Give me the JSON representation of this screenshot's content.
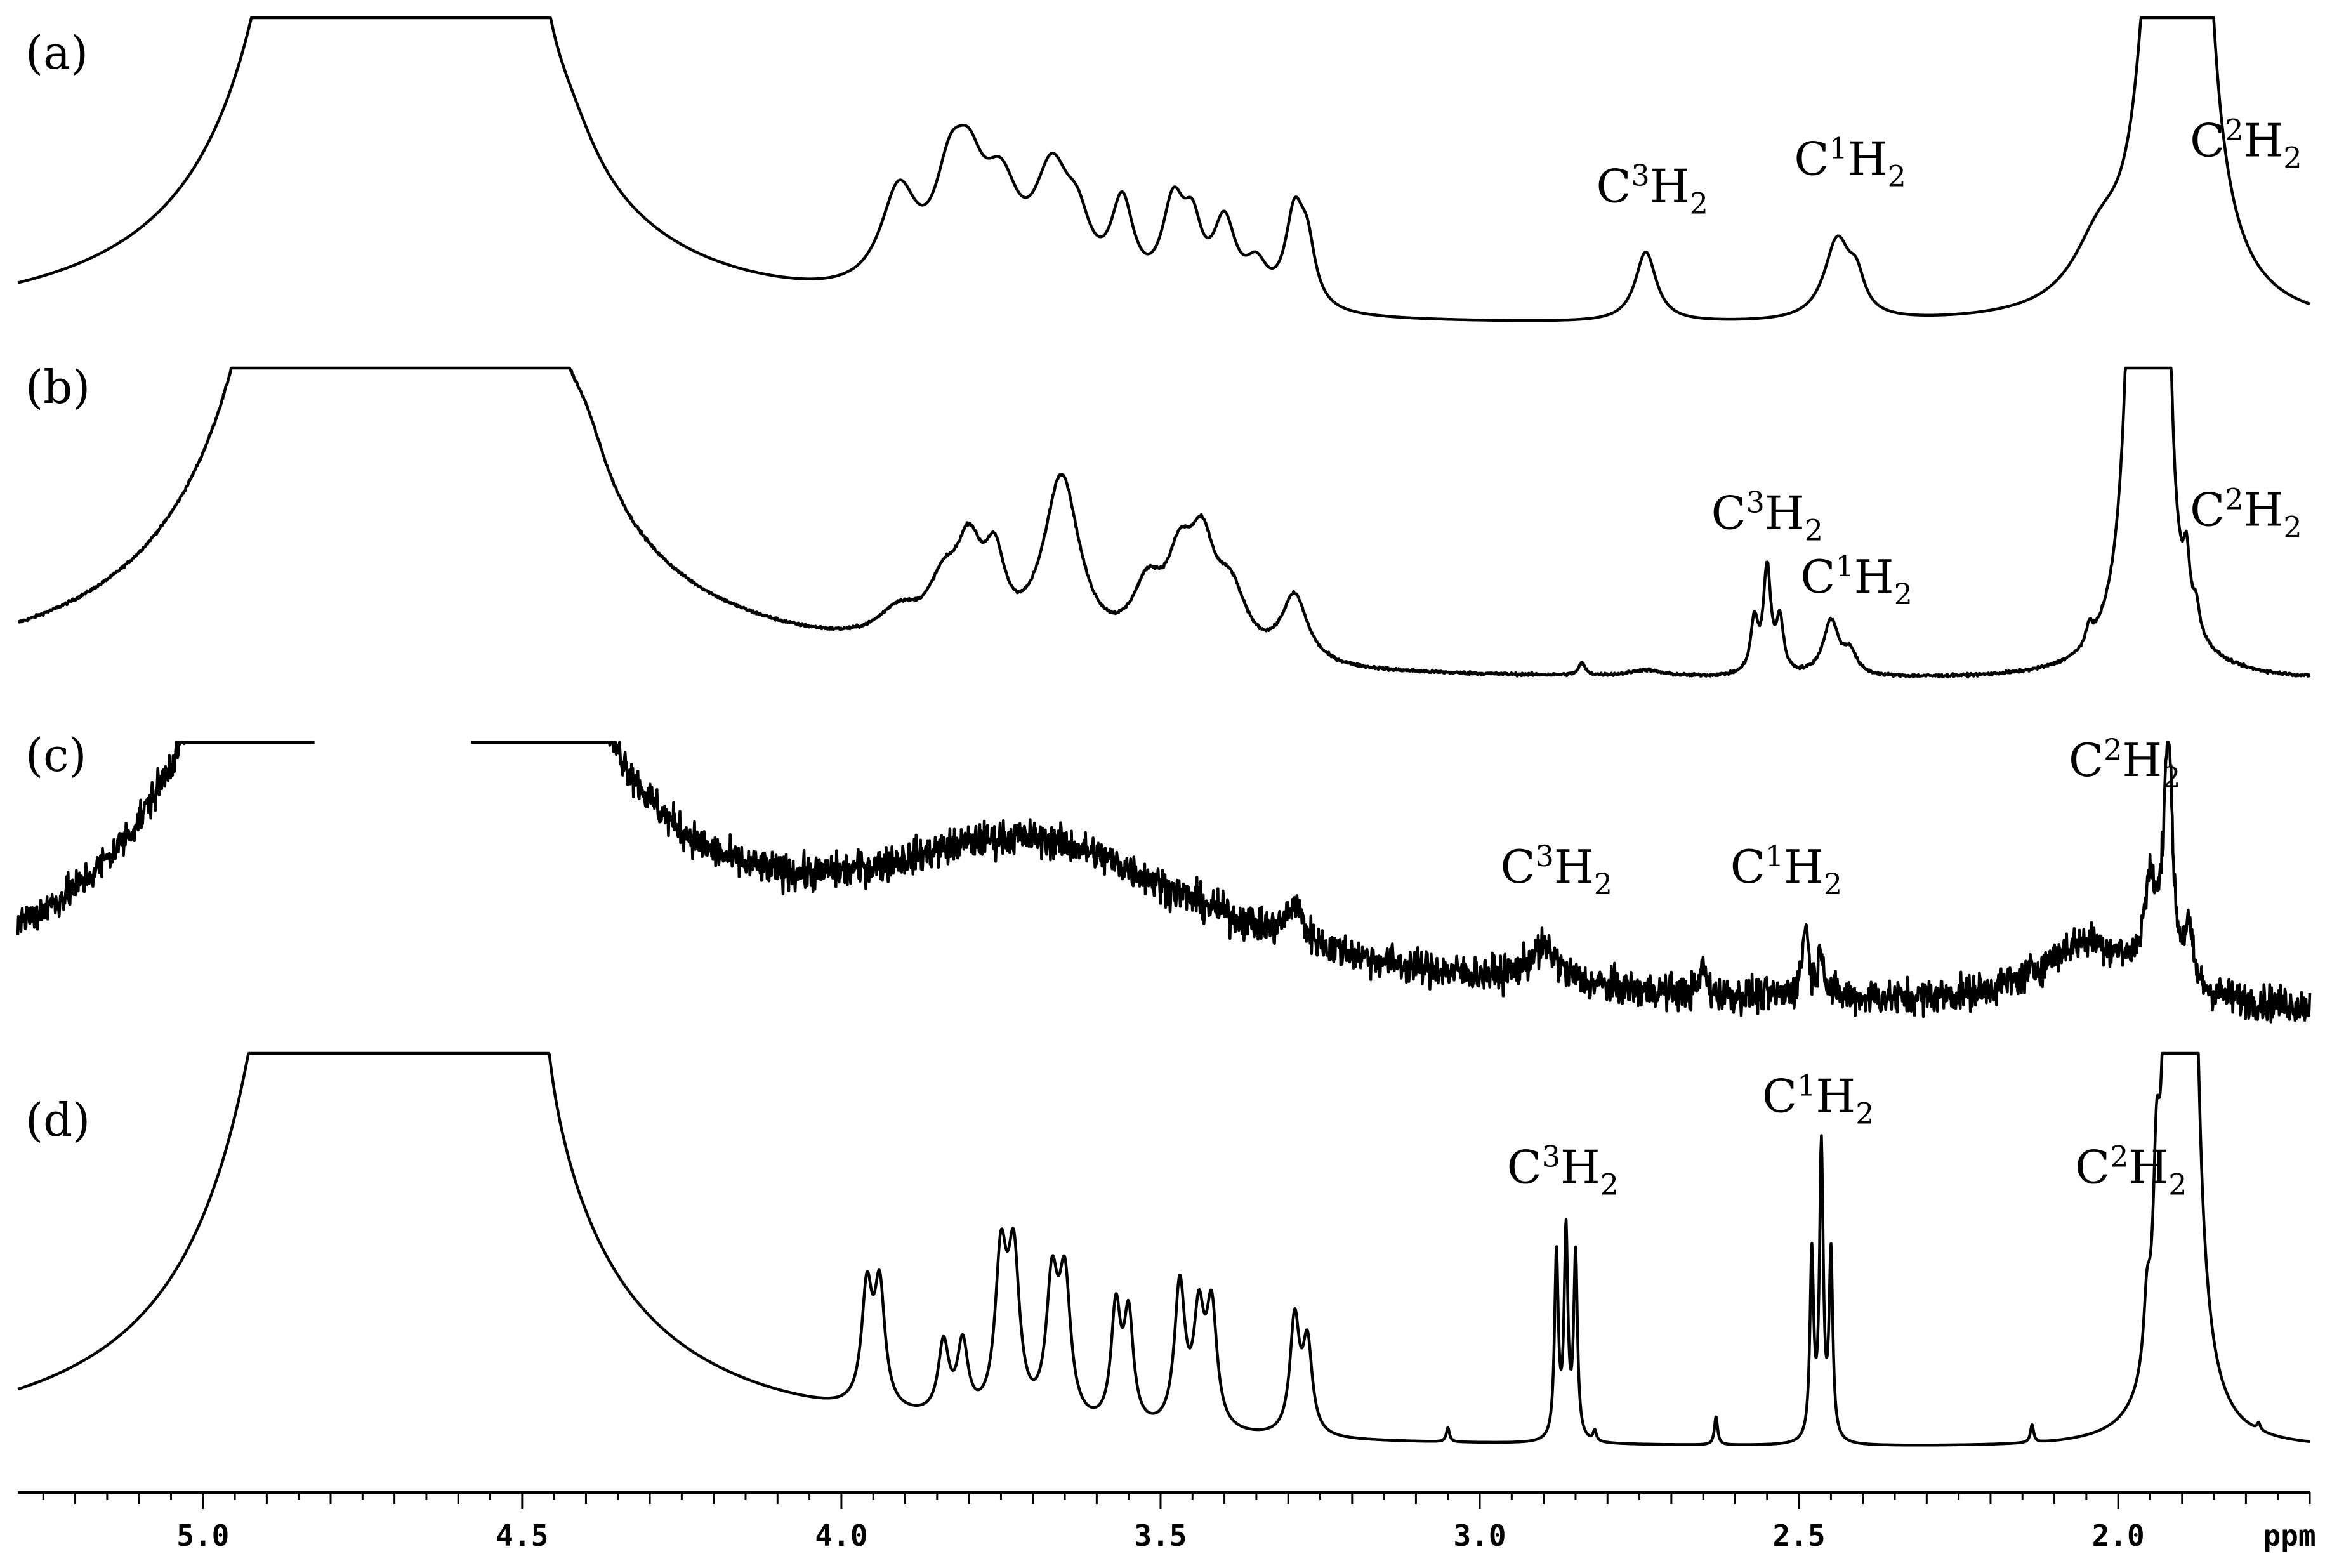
{
  "chart_data": {
    "type": "line",
    "title": "",
    "xlabel": "ppm",
    "ylabel": "",
    "xlim": [
      5.29,
      1.7
    ],
    "x_reversed": true,
    "grid": false,
    "x_ticks": [
      "5.0",
      "4.5",
      "4.0",
      "3.5",
      "3.0",
      "2.5",
      "2.0"
    ],
    "x_unit_label": "ppm",
    "panels": [
      {
        "label": "(a)",
        "noise": 0,
        "offset": 0.012,
        "solvent": {
          "pos": 4.7,
          "width": 0.042,
          "height": 30
        },
        "peaks": [
          {
            "pos": 4.77,
            "width": 0.03,
            "height": 0.04
          },
          {
            "pos": 4.62,
            "width": 0.03,
            "height": 0.04
          },
          {
            "pos": 4.49,
            "width": 0.025,
            "height": 0.33
          },
          {
            "pos": 4.42,
            "width": 0.045,
            "height": 0.07
          },
          {
            "pos": 3.91,
            "width": 0.035,
            "height": 0.32
          },
          {
            "pos": 3.83,
            "width": 0.03,
            "height": 0.3
          },
          {
            "pos": 3.8,
            "width": 0.03,
            "height": 0.28
          },
          {
            "pos": 3.75,
            "width": 0.035,
            "height": 0.3
          },
          {
            "pos": 3.67,
            "width": 0.035,
            "height": 0.38
          },
          {
            "pos": 3.63,
            "width": 0.025,
            "height": 0.17
          },
          {
            "pos": 3.56,
            "width": 0.022,
            "height": 0.3
          },
          {
            "pos": 3.48,
            "width": 0.022,
            "height": 0.3
          },
          {
            "pos": 3.45,
            "width": 0.018,
            "height": 0.2
          },
          {
            "pos": 3.4,
            "width": 0.022,
            "height": 0.26
          },
          {
            "pos": 3.35,
            "width": 0.022,
            "height": 0.12
          },
          {
            "pos": 3.29,
            "width": 0.018,
            "height": 0.3
          },
          {
            "pos": 3.27,
            "width": 0.015,
            "height": 0.17
          },
          {
            "pos": 2.74,
            "width": 0.02,
            "height": 0.23
          },
          {
            "pos": 2.44,
            "width": 0.025,
            "height": 0.26
          },
          {
            "pos": 2.41,
            "width": 0.015,
            "height": 0.1
          },
          {
            "pos": 2.03,
            "width": 0.05,
            "height": 0.18
          },
          {
            "pos": 1.965,
            "width": 0.02,
            "height": 0.07
          },
          {
            "pos": 1.935,
            "width": 0.012,
            "height": 0.4
          },
          {
            "pos": 1.905,
            "width": 0.01,
            "height": 30
          },
          {
            "pos": 1.86,
            "width": 0.01,
            "height": 0.03
          }
        ],
        "annotations": [
          {
            "base": "C",
            "sup": "3",
            "mid": "H",
            "sub": "2",
            "x": 2.73,
            "y": 0.43
          },
          {
            "base": "C",
            "sup": "1",
            "mid": "H",
            "sub": "2",
            "x": 2.42,
            "y": 0.52
          },
          {
            "base": "C",
            "sup": "2",
            "mid": "H",
            "sub": "2",
            "x": 1.8,
            "y": 0.58
          }
        ]
      },
      {
        "label": "(b)",
        "noise": 0.005,
        "offset": 0.012,
        "solvent": {
          "pos": 4.7,
          "width": 0.048,
          "height": 30
        },
        "peaks": [
          {
            "pos": 4.755,
            "width": 0.03,
            "height": 0.35
          },
          {
            "pos": 4.66,
            "width": 0.03,
            "height": 0.25
          },
          {
            "pos": 4.49,
            "width": 0.03,
            "height": 0.2
          },
          {
            "pos": 4.4,
            "width": 0.04,
            "height": 0.14
          },
          {
            "pos": 3.91,
            "width": 0.04,
            "height": 0.1
          },
          {
            "pos": 3.84,
            "width": 0.03,
            "height": 0.17
          },
          {
            "pos": 3.8,
            "width": 0.025,
            "height": 0.28
          },
          {
            "pos": 3.76,
            "width": 0.02,
            "height": 0.24
          },
          {
            "pos": 3.655,
            "width": 0.035,
            "height": 0.58
          },
          {
            "pos": 3.52,
            "width": 0.03,
            "height": 0.2
          },
          {
            "pos": 3.47,
            "width": 0.025,
            "height": 0.25
          },
          {
            "pos": 3.435,
            "width": 0.025,
            "height": 0.31
          },
          {
            "pos": 3.39,
            "width": 0.03,
            "height": 0.2
          },
          {
            "pos": 3.29,
            "width": 0.025,
            "height": 0.22
          },
          {
            "pos": 2.84,
            "width": 0.006,
            "height": 0.04
          },
          {
            "pos": 2.74,
            "width": 0.03,
            "height": 0.02
          },
          {
            "pos": 2.57,
            "width": 0.007,
            "height": 0.17
          },
          {
            "pos": 2.55,
            "width": 0.007,
            "height": 0.34
          },
          {
            "pos": 2.53,
            "width": 0.007,
            "height": 0.17
          },
          {
            "pos": 2.45,
            "width": 0.015,
            "height": 0.18
          },
          {
            "pos": 2.42,
            "width": 0.012,
            "height": 0.07
          },
          {
            "pos": 2.045,
            "width": 0.006,
            "height": 0.06
          },
          {
            "pos": 1.957,
            "width": 0.006,
            "height": 30
          },
          {
            "pos": 1.922,
            "width": 0.007,
            "height": 0.56
          },
          {
            "pos": 1.893,
            "width": 0.006,
            "height": 0.18
          },
          {
            "pos": 1.878,
            "width": 0.006,
            "height": 0.08
          }
        ],
        "annotations": [
          {
            "base": "C",
            "sup": "3",
            "mid": "H",
            "sub": "2",
            "x": 2.55,
            "y": 0.52
          },
          {
            "base": "C",
            "sup": "1",
            "mid": "H",
            "sub": "2",
            "x": 2.41,
            "y": 0.31
          },
          {
            "base": "C",
            "sup": "2",
            "mid": "H",
            "sub": "2",
            "x": 1.8,
            "y": 0.53
          }
        ]
      },
      {
        "label": "(c)",
        "noise": 0.05,
        "offset": 0.1,
        "solvent": {
          "pos": 4.7,
          "width": 0.05,
          "height": 30
        },
        "cutoff": [
          4.825,
          4.58
        ],
        "peaks": [
          {
            "pos": 4.75,
            "width": 0.18,
            "height": 0.35
          },
          {
            "pos": 3.7,
            "width": 0.35,
            "height": 0.42
          },
          {
            "pos": 3.29,
            "width": 0.015,
            "height": 0.1
          },
          {
            "pos": 2.9,
            "width": 0.03,
            "height": 0.1
          },
          {
            "pos": 2.65,
            "width": 0.005,
            "height": 0.08
          },
          {
            "pos": 2.49,
            "width": 0.006,
            "height": 0.2
          },
          {
            "pos": 2.465,
            "width": 0.006,
            "height": 0.13
          },
          {
            "pos": 2.05,
            "width": 0.09,
            "height": 0.18
          },
          {
            "pos": 1.95,
            "width": 0.012,
            "height": 0.25
          },
          {
            "pos": 1.922,
            "width": 0.008,
            "height": 0.7
          },
          {
            "pos": 1.89,
            "width": 0.008,
            "height": 0.15
          }
        ],
        "annotations": [
          {
            "base": "C",
            "sup": "3",
            "mid": "H",
            "sub": "2",
            "x": 2.88,
            "y": 0.48
          },
          {
            "base": "C",
            "sup": "1",
            "mid": "H",
            "sub": "2",
            "x": 2.52,
            "y": 0.48
          },
          {
            "base": "C",
            "sup": "2",
            "mid": "H",
            "sub": "2",
            "x": 1.99,
            "y": 0.78
          }
        ]
      },
      {
        "label": "(d)",
        "noise": 0,
        "offset": 0.006,
        "solvent": {
          "pos": 4.7,
          "width": 0.045,
          "height": 30
        },
        "peaks": [
          {
            "pos": 4.495,
            "width": 0.012,
            "height": 0.32
          },
          {
            "pos": 4.48,
            "width": 0.012,
            "height": 0.4
          },
          {
            "pos": 3.96,
            "width": 0.01,
            "height": 0.32
          },
          {
            "pos": 3.94,
            "width": 0.01,
            "height": 0.33
          },
          {
            "pos": 3.84,
            "width": 0.01,
            "height": 0.2
          },
          {
            "pos": 3.81,
            "width": 0.01,
            "height": 0.2
          },
          {
            "pos": 3.75,
            "width": 0.011,
            "height": 0.43
          },
          {
            "pos": 3.73,
            "width": 0.011,
            "height": 0.43
          },
          {
            "pos": 3.67,
            "width": 0.011,
            "height": 0.37
          },
          {
            "pos": 3.65,
            "width": 0.011,
            "height": 0.38
          },
          {
            "pos": 3.57,
            "width": 0.009,
            "height": 0.32
          },
          {
            "pos": 3.55,
            "width": 0.009,
            "height": 0.3
          },
          {
            "pos": 3.47,
            "width": 0.01,
            "height": 0.4
          },
          {
            "pos": 3.44,
            "width": 0.01,
            "height": 0.3
          },
          {
            "pos": 3.42,
            "width": 0.01,
            "height": 0.33
          },
          {
            "pos": 3.29,
            "width": 0.009,
            "height": 0.32
          },
          {
            "pos": 3.27,
            "width": 0.009,
            "height": 0.25
          },
          {
            "pos": 3.05,
            "width": 0.003,
            "height": 0.04
          },
          {
            "pos": 2.88,
            "width": 0.0035,
            "height": 0.52
          },
          {
            "pos": 2.865,
            "width": 0.0035,
            "height": 0.58
          },
          {
            "pos": 2.85,
            "width": 0.0035,
            "height": 0.52
          },
          {
            "pos": 2.82,
            "width": 0.003,
            "height": 0.03
          },
          {
            "pos": 2.63,
            "width": 0.003,
            "height": 0.08
          },
          {
            "pos": 2.48,
            "width": 0.0035,
            "height": 0.52
          },
          {
            "pos": 2.465,
            "width": 0.0035,
            "height": 0.82
          },
          {
            "pos": 2.45,
            "width": 0.0035,
            "height": 0.52
          },
          {
            "pos": 2.135,
            "width": 0.003,
            "height": 0.05
          },
          {
            "pos": 1.955,
            "width": 0.006,
            "height": 0.18
          },
          {
            "pos": 1.94,
            "width": 0.006,
            "height": 0.42
          },
          {
            "pos": 1.925,
            "width": 0.006,
            "height": 0.48
          },
          {
            "pos": 1.9,
            "width": 0.005,
            "height": 30
          },
          {
            "pos": 1.78,
            "width": 0.003,
            "height": 0.02
          }
        ],
        "annotations": [
          {
            "base": "C",
            "sup": "3",
            "mid": "H",
            "sub": "2",
            "x": 2.87,
            "y": 0.76
          },
          {
            "base": "C",
            "sup": "1",
            "mid": "H",
            "sub": "2",
            "x": 2.47,
            "y": 0.96
          },
          {
            "base": "C",
            "sup": "2",
            "mid": "H",
            "sub": "2",
            "x": 1.98,
            "y": 0.76
          }
        ]
      }
    ]
  }
}
